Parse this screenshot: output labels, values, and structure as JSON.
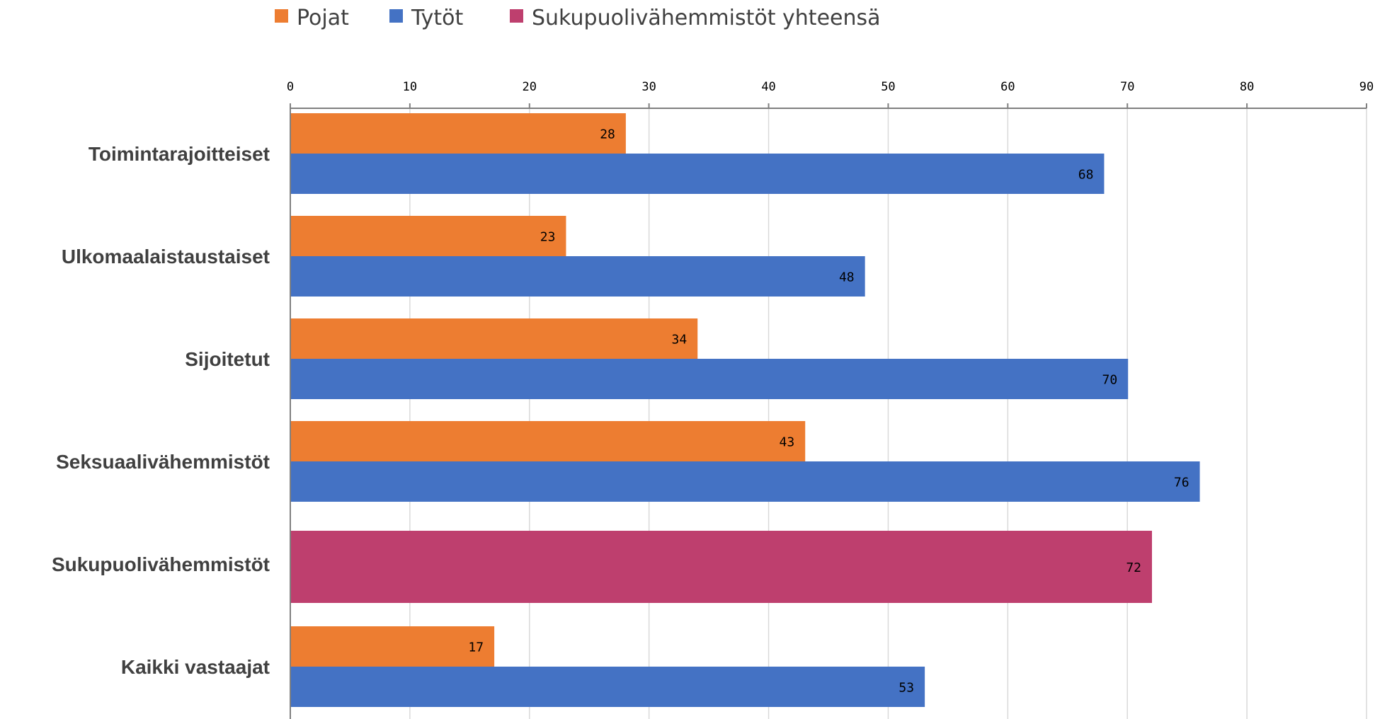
{
  "chart_data": {
    "type": "bar",
    "orientation": "horizontal",
    "categories": [
      "Toimintarajoitteiset",
      "Ulkomaalaistaustaiset",
      "Sijoitetut",
      "Seksuaalivähemmistöt",
      "Sukupuolivähemmistöt",
      "Kaikki vastaajat"
    ],
    "series": [
      {
        "name": "Pojat",
        "color": "#ED7D31",
        "values": [
          28,
          23,
          34,
          43,
          null,
          17
        ]
      },
      {
        "name": "Tytöt",
        "color": "#4472C4",
        "values": [
          68,
          48,
          70,
          76,
          null,
          53
        ]
      },
      {
        "name": "Sukupuolivähemmistöt yhteensä",
        "color": "#BE3F6E",
        "values": [
          null,
          null,
          null,
          null,
          72,
          null
        ]
      }
    ],
    "xlim": [
      0,
      90
    ],
    "xticks": [
      0,
      10,
      20,
      30,
      40,
      50,
      60,
      70,
      80,
      90
    ],
    "x_axis_position": "top",
    "grid": true,
    "legend_position": "top",
    "data_labels": true,
    "title": "",
    "xlabel": "",
    "ylabel": ""
  }
}
